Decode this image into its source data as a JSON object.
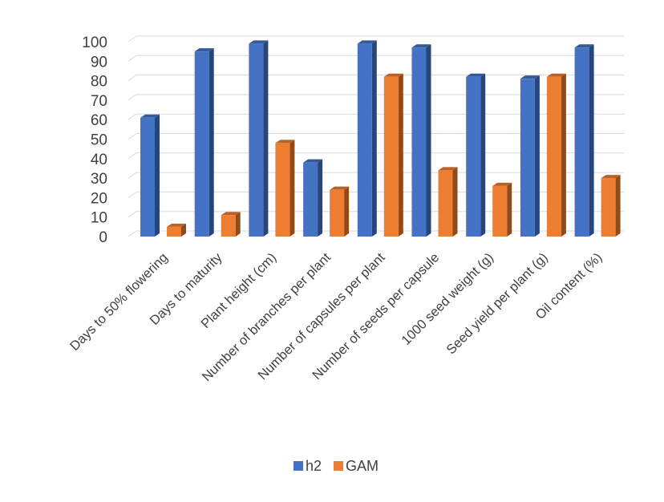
{
  "chart_data": {
    "type": "bar",
    "title": "",
    "xlabel": "",
    "ylabel": "",
    "ylim": [
      0,
      100
    ],
    "yticks": [
      0,
      10,
      20,
      30,
      40,
      50,
      60,
      70,
      80,
      90,
      100
    ],
    "grid": true,
    "legend_position": "bottom",
    "categories": [
      "Days to 50% flowering",
      "Days to maturity",
      "Plant height (cm)",
      "Number of branches per plant",
      "Number of capsules per plant",
      "Number of seeds per capsule",
      "1000 seed weight (g)",
      "Seed yield per plant (g)",
      "Oil content (%)"
    ],
    "series": [
      {
        "name": "h2",
        "color": "#4472C4",
        "values": [
          61,
          95,
          99,
          38,
          99,
          97,
          82,
          81,
          97
        ]
      },
      {
        "name": "GAM",
        "color": "#ED7D31",
        "values": [
          5,
          11,
          48,
          24,
          82,
          34,
          26,
          82,
          30
        ]
      }
    ]
  }
}
